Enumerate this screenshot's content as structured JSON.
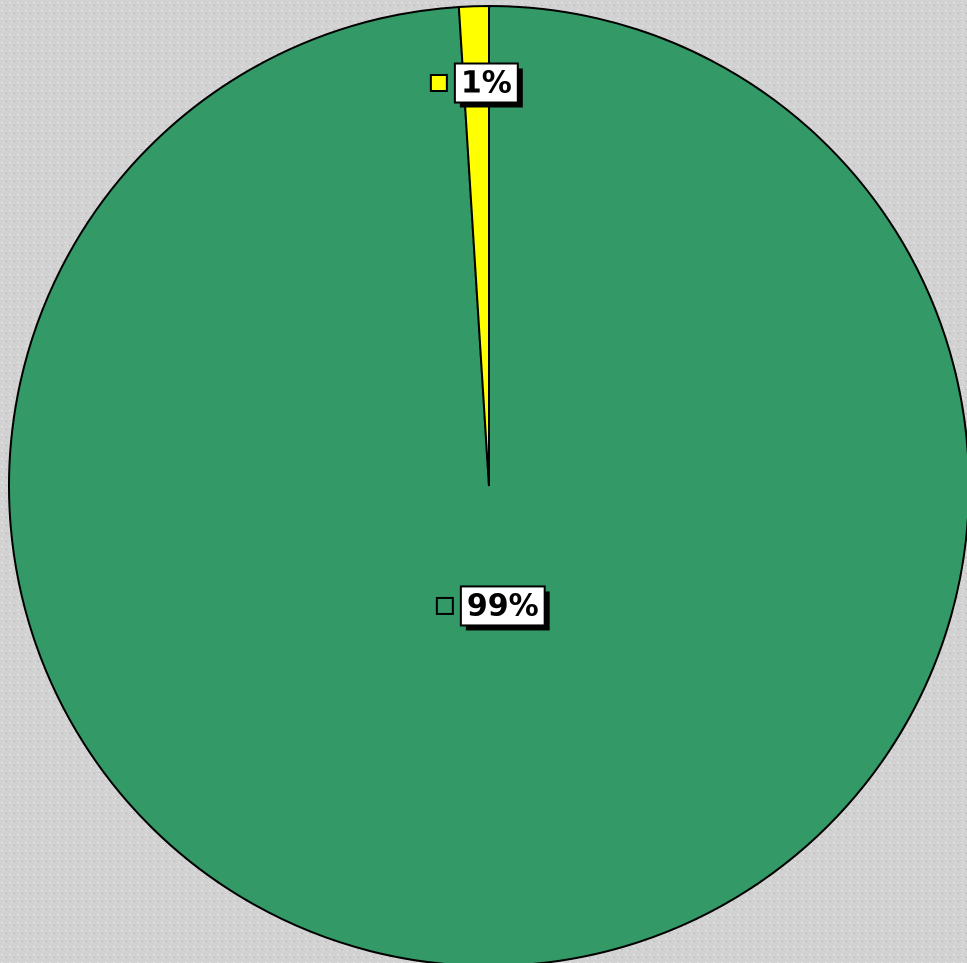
{
  "chart_data": {
    "type": "pie",
    "categories": [
      null,
      null
    ],
    "values": [
      99,
      1
    ],
    "value_labels": [
      "99%",
      "1%"
    ],
    "colors": [
      "#339966",
      "#ffff00"
    ]
  }
}
